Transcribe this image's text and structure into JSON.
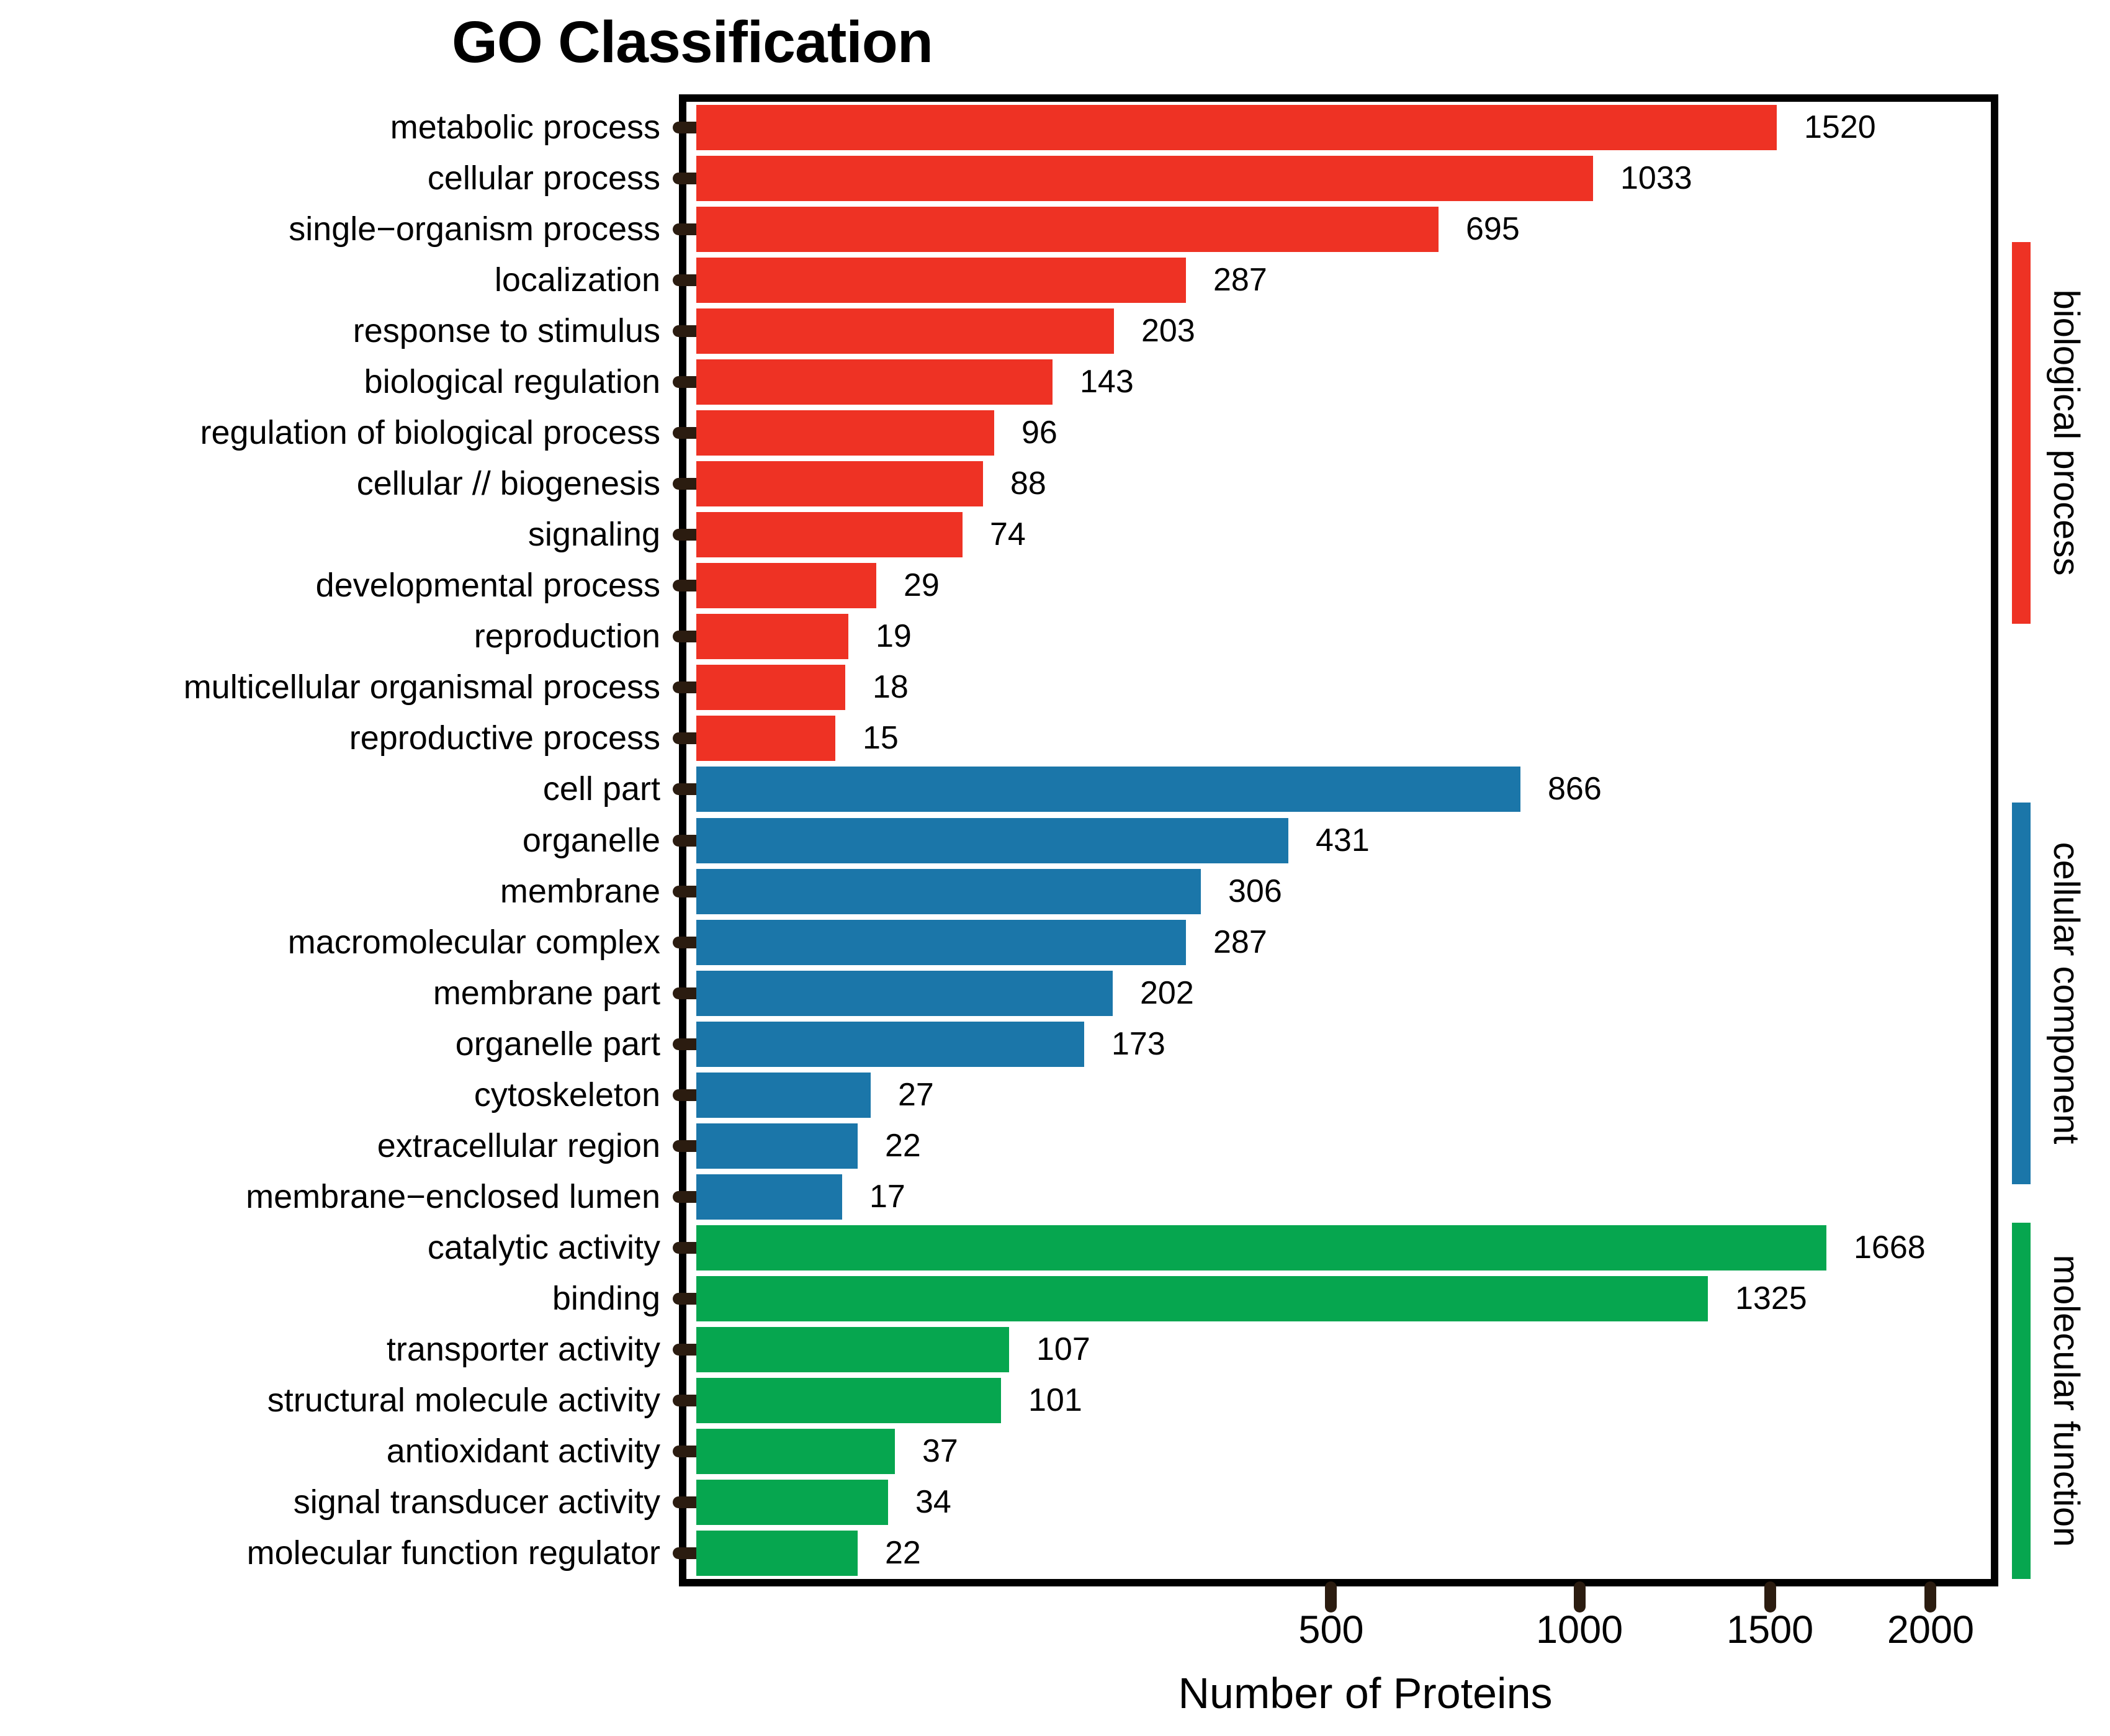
{
  "title": "GO Classification",
  "x_axis_label": "Number of Proteins",
  "colors": {
    "biological_process": "#EE3224",
    "cellular_component": "#1B76A9",
    "molecular_function": "#06A64F",
    "tick": "#2b1c10"
  },
  "chart_data": {
    "type": "bar",
    "orientation": "horizontal",
    "scale": "sqrt",
    "title": "GO Classification",
    "xlabel": "Number of Proteins",
    "xlim": [
      0,
      2000
    ],
    "xticks": [
      500,
      1000,
      1500,
      2000
    ],
    "grid": false,
    "legend_position": "right",
    "groups": [
      {
        "name": "biological process",
        "color": "#EE3224",
        "items": [
          {
            "label": "metabolic process",
            "value": 1520
          },
          {
            "label": "cellular process",
            "value": 1033
          },
          {
            "label": "single−organism process",
            "value": 695
          },
          {
            "label": "localization",
            "value": 287
          },
          {
            "label": "response to stimulus",
            "value": 203
          },
          {
            "label": "biological regulation",
            "value": 143
          },
          {
            "label": "regulation of biological process",
            "value": 96
          },
          {
            "label": "cellular // biogenesis",
            "value": 88
          },
          {
            "label": "signaling",
            "value": 74
          },
          {
            "label": "developmental process",
            "value": 29
          },
          {
            "label": "reproduction",
            "value": 19
          },
          {
            "label": "multicellular organismal process",
            "value": 18
          },
          {
            "label": "reproductive process",
            "value": 15
          }
        ]
      },
      {
        "name": "cellular component",
        "color": "#1B76A9",
        "items": [
          {
            "label": "cell part",
            "value": 866
          },
          {
            "label": "organelle",
            "value": 431
          },
          {
            "label": "membrane",
            "value": 306
          },
          {
            "label": "macromolecular complex",
            "value": 287
          },
          {
            "label": "membrane part",
            "value": 202
          },
          {
            "label": "organelle part",
            "value": 173
          },
          {
            "label": "cytoskeleton",
            "value": 27
          },
          {
            "label": "extracellular region",
            "value": 22
          },
          {
            "label": "membrane−enclosed lumen",
            "value": 17
          }
        ]
      },
      {
        "name": "molecular function",
        "color": "#06A64F",
        "items": [
          {
            "label": "catalytic activity",
            "value": 1668
          },
          {
            "label": "binding",
            "value": 1325
          },
          {
            "label": "transporter activity",
            "value": 107
          },
          {
            "label": "structural molecule activity",
            "value": 101
          },
          {
            "label": "antioxidant activity",
            "value": 37
          },
          {
            "label": "signal transducer activity",
            "value": 34
          },
          {
            "label": "molecular function regulator",
            "value": 22
          }
        ]
      }
    ]
  }
}
